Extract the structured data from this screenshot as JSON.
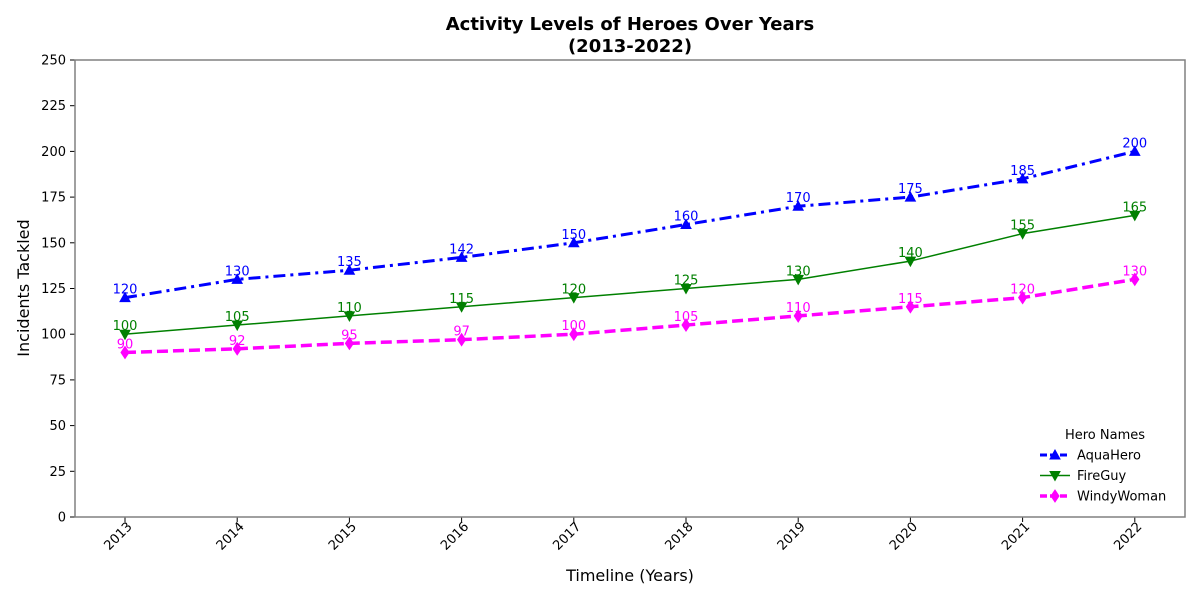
{
  "chart_data": {
    "type": "line",
    "title_line1": "Activity Levels of Heroes Over Years",
    "title_line2": "(2013-2022)",
    "xlabel": "Timeline (Years)",
    "ylabel": "Incidents Tackled",
    "categories": [
      "2013",
      "2014",
      "2015",
      "2016",
      "2017",
      "2018",
      "2019",
      "2020",
      "2021",
      "2022"
    ],
    "ylim": [
      0,
      250
    ],
    "yticks": [
      0,
      25,
      50,
      75,
      100,
      125,
      150,
      175,
      200,
      225,
      250
    ],
    "grid": false,
    "legend": {
      "title": "Hero Names",
      "placement": "lower-right"
    },
    "series": [
      {
        "name": "AquaHero",
        "color": "#0000ff",
        "marker": "triangle-up",
        "style": "dash-dot",
        "values": [
          120,
          130,
          135,
          142,
          150,
          160,
          170,
          175,
          185,
          200
        ]
      },
      {
        "name": "FireGuy",
        "color": "#008000",
        "marker": "triangle-down",
        "style": "solid",
        "values": [
          100,
          105,
          110,
          115,
          120,
          125,
          130,
          140,
          155,
          165
        ]
      },
      {
        "name": "WindyWoman",
        "color": "#ff00ff",
        "marker": "diamond",
        "style": "dashed",
        "values": [
          90,
          92,
          95,
          97,
          100,
          105,
          110,
          115,
          120,
          130
        ]
      }
    ]
  }
}
